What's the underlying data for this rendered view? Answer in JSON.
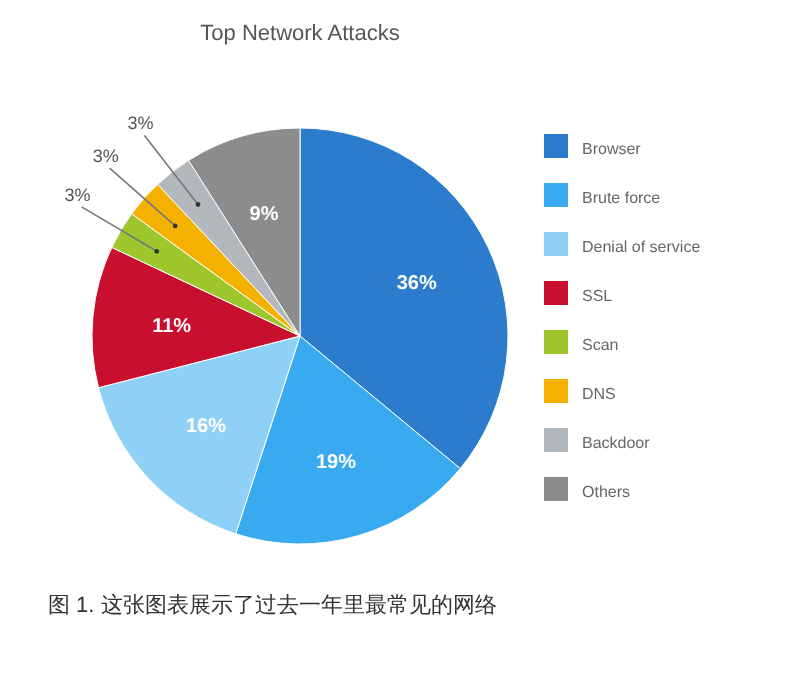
{
  "chart_data": {
    "type": "pie",
    "title": "Top Network Attacks",
    "categories": [
      "Browser",
      "Brute force",
      "Denial of service",
      "SSL",
      "Scan",
      "DNS",
      "Backdoor",
      "Others"
    ],
    "values": [
      36,
      19,
      16,
      11,
      3,
      3,
      3,
      9
    ],
    "colors": [
      "#2b7ccc",
      "#3aaaf0",
      "#8fd0f7",
      "#c8102e",
      "#9dc72d",
      "#f5b100",
      "#b3b8bd",
      "#8c8c8c"
    ],
    "value_labels": [
      "36%",
      "19%",
      "16%",
      "11%",
      "3%",
      "3%",
      "3%",
      "9%"
    ],
    "legend": "right",
    "annotations": [
      "图 1. 这张图表展示了过去一年里最常见的网络"
    ]
  }
}
